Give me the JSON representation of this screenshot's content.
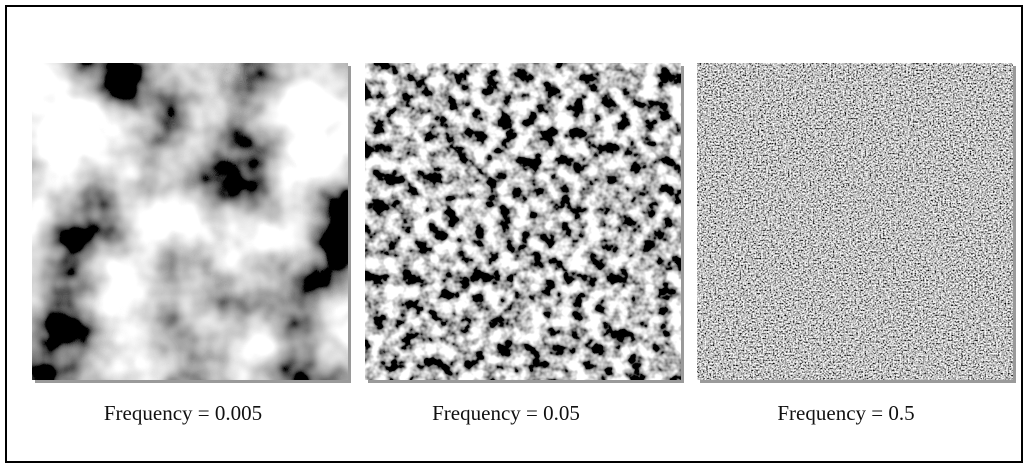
{
  "panels": [
    {
      "caption": "Frequency = 0.005"
    },
    {
      "caption": "Frequency = 0.05"
    },
    {
      "caption": "Frequency = 0.5"
    }
  ]
}
